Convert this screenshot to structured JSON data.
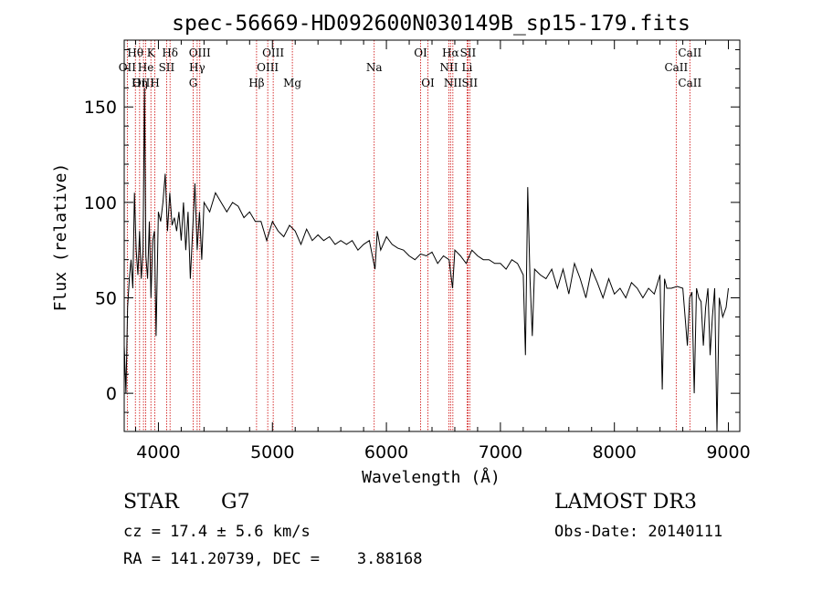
{
  "chart_data": {
    "type": "line",
    "title": "spec-56669-HD092600N030149B_sp15-179.fits",
    "xlabel": "Wavelength (Å)",
    "ylabel": "Flux (relative)",
    "xlim": [
      3700,
      9100
    ],
    "ylim": [
      -20,
      185
    ],
    "x_ticks": [
      4000,
      5000,
      6000,
      7000,
      8000,
      9000
    ],
    "y_ticks": [
      0,
      50,
      100,
      150
    ],
    "grid": false,
    "colors": {
      "spectrum": "#000000",
      "line_markers": "#cc0000"
    },
    "spectral_lines": [
      {
        "label": "Hθ",
        "x": 3798,
        "row": 1
      },
      {
        "label": "OII",
        "x": 3727,
        "row": 2
      },
      {
        "label": "OIII",
        "x": 3869,
        "row": 3
      },
      {
        "label": "Hη",
        "x": 3835,
        "row": 3
      },
      {
        "label": "K",
        "x": 3934,
        "row": 1
      },
      {
        "label": "He",
        "x": 3889,
        "row": 2
      },
      {
        "label": "H",
        "x": 3969,
        "row": 3
      },
      {
        "label": "Hδ",
        "x": 4102,
        "row": 1
      },
      {
        "label": "SII",
        "x": 4072,
        "row": 2
      },
      {
        "label": "OIII",
        "x": 4363,
        "row": 1
      },
      {
        "label": "Hγ",
        "x": 4340,
        "row": 2
      },
      {
        "label": "G",
        "x": 4305,
        "row": 3
      },
      {
        "label": "Hβ",
        "x": 4861,
        "row": 3
      },
      {
        "label": "OIII",
        "x": 5007,
        "row": 1
      },
      {
        "label": "OIII",
        "x": 4959,
        "row": 2
      },
      {
        "label": "Mg",
        "x": 5175,
        "row": 3
      },
      {
        "label": "Na",
        "x": 5893,
        "row": 2
      },
      {
        "label": "OI",
        "x": 6300,
        "row": 1
      },
      {
        "label": "OI",
        "x": 6364,
        "row": 3
      },
      {
        "label": "Hα",
        "x": 6563,
        "row": 1
      },
      {
        "label": "NII",
        "x": 6548,
        "row": 2
      },
      {
        "label": "NII",
        "x": 6583,
        "row": 3
      },
      {
        "label": "SII",
        "x": 6716,
        "row": 1
      },
      {
        "label": "Li",
        "x": 6708,
        "row": 2
      },
      {
        "label": "SII",
        "x": 6731,
        "row": 3
      },
      {
        "label": "CaII",
        "x": 8662,
        "row": 1
      },
      {
        "label": "CaII",
        "x": 8542,
        "row": 2
      },
      {
        "label": "CaII",
        "x": 8662,
        "row": 3
      }
    ],
    "series": [
      {
        "x": [
          3700,
          3715,
          3730,
          3745,
          3760,
          3775,
          3790,
          3805,
          3820,
          3835,
          3850,
          3865,
          3878,
          3890,
          3905,
          3920,
          3935,
          3950,
          3965,
          3980,
          4000,
          4020,
          4040,
          4060,
          4080,
          4100,
          4120,
          4140,
          4160,
          4180,
          4200,
          4220,
          4240,
          4260,
          4280,
          4300,
          4320,
          4340,
          4360,
          4380,
          4400,
          4450,
          4500,
          4550,
          4600,
          4650,
          4700,
          4750,
          4800,
          4850,
          4900,
          4950,
          5000,
          5050,
          5100,
          5150,
          5200,
          5250,
          5300,
          5350,
          5400,
          5450,
          5500,
          5550,
          5600,
          5650,
          5700,
          5750,
          5800,
          5850,
          5900,
          5920,
          5950,
          6000,
          6050,
          6100,
          6150,
          6200,
          6250,
          6300,
          6350,
          6400,
          6450,
          6500,
          6550,
          6580,
          6600,
          6650,
          6700,
          6750,
          6800,
          6850,
          6900,
          6950,
          7000,
          7050,
          7100,
          7150,
          7200,
          7220,
          7240,
          7260,
          7280,
          7300,
          7350,
          7400,
          7450,
          7500,
          7550,
          7600,
          7650,
          7700,
          7750,
          7800,
          7850,
          7900,
          7950,
          8000,
          8050,
          8100,
          8150,
          8200,
          8250,
          8300,
          8350,
          8400,
          8420,
          8440,
          8460,
          8500,
          8550,
          8600,
          8640,
          8660,
          8680,
          8700,
          8720,
          8740,
          8760,
          8780,
          8800,
          8820,
          8840,
          8860,
          8880,
          8900,
          8920,
          8950,
          8980,
          9000
        ],
        "values": [
          25,
          0,
          45,
          60,
          70,
          55,
          105,
          75,
          62,
          85,
          60,
          75,
          160,
          72,
          60,
          90,
          50,
          80,
          85,
          30,
          95,
          90,
          100,
          115,
          85,
          105,
          88,
          92,
          85,
          95,
          80,
          100,
          75,
          95,
          60,
          85,
          110,
          75,
          95,
          70,
          100,
          95,
          105,
          100,
          95,
          100,
          98,
          92,
          95,
          90,
          90,
          80,
          90,
          85,
          82,
          88,
          85,
          78,
          86,
          80,
          83,
          80,
          82,
          78,
          80,
          78,
          80,
          75,
          78,
          80,
          65,
          85,
          75,
          82,
          78,
          76,
          75,
          72,
          70,
          73,
          72,
          74,
          68,
          72,
          70,
          55,
          75,
          72,
          68,
          75,
          72,
          70,
          70,
          68,
          68,
          65,
          70,
          68,
          62,
          20,
          108,
          60,
          30,
          65,
          62,
          60,
          65,
          55,
          65,
          52,
          68,
          60,
          50,
          65,
          58,
          50,
          60,
          52,
          55,
          50,
          58,
          55,
          50,
          55,
          52,
          62,
          2,
          60,
          55,
          55,
          56,
          55,
          25,
          50,
          53,
          0,
          55,
          50,
          48,
          25,
          45,
          55,
          20,
          40,
          55,
          -20,
          50,
          40,
          45,
          55
        ]
      }
    ]
  },
  "info": {
    "object_class": "STAR",
    "subclass": "G7",
    "survey": "LAMOST DR3",
    "redshift": "cz = 17.4 ± 5.6 km/s",
    "obs_date": "Obs-Date: 20140111",
    "coords": "RA = 141.20739, DEC =    3.88168"
  }
}
